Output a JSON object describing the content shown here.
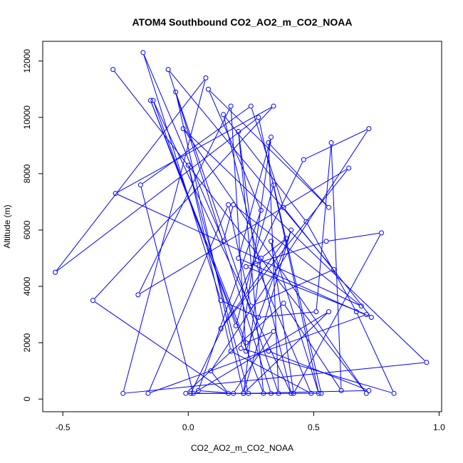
{
  "chart_data": {
    "type": "line",
    "title": "ATOM4 Southbound CO2_AO2_m_CO2_NOAA",
    "xlabel": "CO2_AO2_m_CO2_NOAA",
    "ylabel": "Altitude (m)",
    "xlim": [
      -0.58,
      1.01
    ],
    "ylim": [
      -450,
      12700
    ],
    "x_ticks": [
      -0.5,
      0.0,
      0.5,
      1.0
    ],
    "x_tick_labels": [
      "-0.5",
      "0.0",
      "0.5",
      "1.0"
    ],
    "y_ticks": [
      0,
      2000,
      4000,
      6000,
      8000,
      10000,
      12000
    ],
    "y_tick_labels": [
      "0",
      "2000",
      "4000",
      "6000",
      "8000",
      "10000",
      "12000"
    ],
    "grid": false,
    "legend": "none",
    "color": "#0000ff",
    "marker": "open-circle",
    "series": [
      {
        "x": [
          -0.3,
          0.71,
          -0.02,
          0.95,
          -0.26,
          0.07,
          -0.53,
          0.28,
          0.52,
          0.33,
          0.42,
          0.77,
          0.55,
          0.23,
          0.71,
          -0.16,
          0.16,
          0.25,
          0.58,
          -0.08,
          0.33,
          0.01,
          0.46,
          0.72,
          0.09,
          0.16,
          -0.38,
          0.34,
          -0.29,
          0.69,
          0.18,
          0.14,
          -0.18,
          0.13,
          0.28,
          0.51,
          0.57,
          0.61,
          0.38,
          -0.01,
          0.53,
          0.34,
          0.19,
          -0.14,
          0.41,
          0.14,
          0.47,
          0.67,
          0.82,
          0.21,
          0.33,
          0.2,
          0.73,
          0.38,
          0.25,
          -0.19,
          0.02,
          0.56,
          0.22,
          0.29,
          0.39,
          0.13,
          0.64,
          -0.2,
          0.17,
          0.23,
          0.41,
          0.22,
          -0.05,
          0.36,
          0.32,
          0.56,
          0.08,
          0.29,
          0.04,
          0.18,
          0.34,
          0.23,
          -0.15,
          0.3,
          0.2,
          0.27,
          0.49,
          0.17,
          0.0,
          0.24,
          0.72,
          0.32
        ],
        "y": [
          11700,
          200,
          9600,
          1300,
          200,
          11400,
          4500,
          10000,
          200,
          5600,
          200,
          5900,
          5600,
          4700,
          3000,
          200,
          6900,
          3300,
          4600,
          11700,
          200,
          200,
          8500,
          9600,
          1000,
          200,
          3500,
          10400,
          7300,
          3300,
          6900,
          5600,
          12300,
          3500,
          2900,
          3100,
          9100,
          300,
          3400,
          200,
          200,
          7600,
          2600,
          10600,
          200,
          10100,
          6300,
          3100,
          200,
          1800,
          9300,
          5000,
          2900,
          6800,
          10400,
          7600,
          200,
          3100,
          200,
          5000,
          5700,
          2500,
          8200,
          3700,
          10400,
          1700,
          6000,
          200,
          10900,
          200,
          9100,
          6800,
          11000,
          6700,
          300,
          200,
          2400,
          2000,
          10600,
          200,
          9500,
          4800,
          200,
          1700,
          8300,
          200,
          300,
          1700
        ]
      }
    ]
  }
}
